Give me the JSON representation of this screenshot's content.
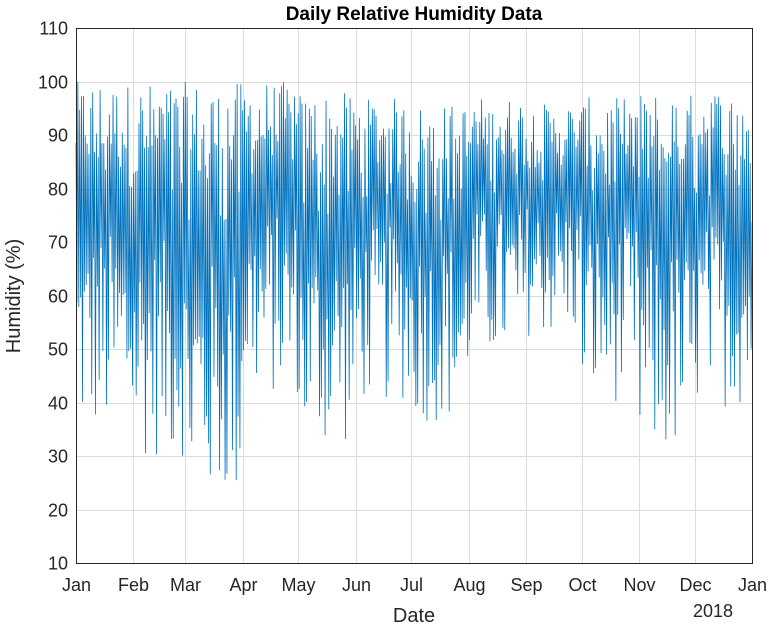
{
  "chart_data": {
    "type": "line",
    "title": "Daily Relative Humidity Data",
    "xlabel": "Date",
    "ylabel": "Humidity (%)",
    "ylim": [
      10,
      110
    ],
    "yticks": [
      10,
      20,
      30,
      40,
      50,
      60,
      70,
      80,
      90,
      100,
      110
    ],
    "xlim": [
      "2017-01-01",
      "2018-01-01"
    ],
    "xticks": [
      "2017-01-01",
      "2017-02-01",
      "2017-03-01",
      "2017-04-01",
      "2017-05-01",
      "2017-06-01",
      "2017-07-01",
      "2017-08-01",
      "2017-09-01",
      "2017-10-01",
      "2017-11-01",
      "2017-12-01",
      "2018-01-01"
    ],
    "xtick_labels": [
      "Jan",
      "Feb",
      "Mar",
      "Apr",
      "May",
      "Jun",
      "Jul",
      "Aug",
      "Sep",
      "Oct",
      "Nov",
      "Dec",
      "Jan"
    ],
    "x_secondary_label": "2018",
    "grid": true,
    "series": [
      {
        "color": "#0072BD",
        "note_values": "monthly approximate daily min/max envelope (hourly samples oscillate between these)",
        "monthly_envelope": [
          {
            "month": "Jan",
            "min": 30,
            "max": 100
          },
          {
            "month": "Feb",
            "min": 26,
            "max": 100
          },
          {
            "month": "Mar",
            "min": 17,
            "max": 100
          },
          {
            "month": "Apr",
            "min": 38,
            "max": 100
          },
          {
            "month": "May",
            "min": 28,
            "max": 98
          },
          {
            "month": "Jun",
            "min": 37,
            "max": 97
          },
          {
            "month": "Jul",
            "min": 33,
            "max": 96
          },
          {
            "month": "Aug",
            "min": 45,
            "max": 97
          },
          {
            "month": "Sep",
            "min": 50,
            "max": 96
          },
          {
            "month": "Oct",
            "min": 37,
            "max": 97
          },
          {
            "month": "Nov",
            "min": 26,
            "max": 98
          },
          {
            "month": "Dec",
            "min": 36,
            "max": 99
          }
        ]
      }
    ]
  }
}
